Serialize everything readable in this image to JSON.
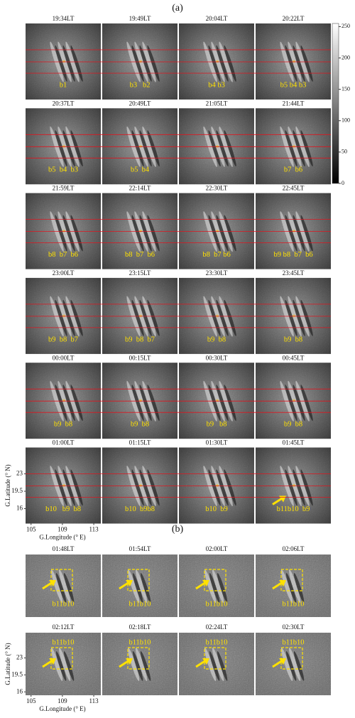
{
  "panel_a": {
    "label": "(a)",
    "panels": [
      {
        "time": "19:34LT",
        "bands": "b1"
      },
      {
        "time": "19:49LT",
        "bands": "b3   b2"
      },
      {
        "time": "20:04LT",
        "bands": "b4 b3"
      },
      {
        "time": "20:22LT",
        "bands": "b5 b4 b3"
      },
      {
        "time": "20:37LT",
        "bands": "b5  b4  b3"
      },
      {
        "time": "20:49LT",
        "bands": "b5  b4"
      },
      {
        "time": "21:05LT"
      },
      {
        "time": "21:44LT",
        "bands": "b7  b6"
      },
      {
        "time": "21:59LT",
        "bands": "b8  b7  b6"
      },
      {
        "time": "22:14LT",
        "bands": "b8  b7  b6"
      },
      {
        "time": "22:30LT",
        "bands": "b8  b7 b6"
      },
      {
        "time": "22:45LT",
        "bands": "b9 b8  b7  b6"
      },
      {
        "time": "23:00LT",
        "bands": "b9  b8  b7"
      },
      {
        "time": "23:15LT",
        "bands": "b9  b8  b7"
      },
      {
        "time": "23:30LT",
        "bands": "b9  b8"
      },
      {
        "time": "23:45LT",
        "bands": "b9  b8"
      },
      {
        "time": "00:00LT",
        "bands": "b9  b8"
      },
      {
        "time": "00:15LT",
        "bands": "b9  b8"
      },
      {
        "time": "00:30LT",
        "bands": "b9   b8"
      },
      {
        "time": "00:45LT",
        "bands": "b9  b8"
      },
      {
        "time": "01:00LT",
        "bands": "b10   b9  b8"
      },
      {
        "time": "01:15LT",
        "bands": "b10  b9b8"
      },
      {
        "time": "01:30LT",
        "bands": "b10  b9"
      },
      {
        "time": "01:45LT",
        "bands": "b11b10  b9"
      }
    ],
    "colorbar": {
      "lim": [
        0,
        255
      ],
      "ticks": [
        0,
        50,
        100,
        150,
        200,
        250
      ]
    },
    "y_axis": {
      "label": "G.Latitude (° N)",
      "lim": [
        13,
        28.3
      ],
      "ticks": [
        23,
        19.5,
        16
      ]
    },
    "x_axis": {
      "label": "G.Longitude (° E)",
      "lim": [
        104.3,
        113.9
      ],
      "ticks": [
        105,
        109,
        113
      ]
    }
  },
  "panel_b": {
    "label": "(b)",
    "panels": [
      {
        "time": "01:48LT",
        "bands": "b11b10"
      },
      {
        "time": "01:54LT",
        "bands": "b11b10"
      },
      {
        "time": "02:00LT",
        "bands": "b11b10"
      },
      {
        "time": "02:06LT",
        "bands": "b11b10"
      },
      {
        "time": "02:12LT",
        "bands": "b11b10"
      },
      {
        "time": "02:18LT",
        "bands": "b11b10"
      },
      {
        "time": "02:24LT",
        "bands": "b11b10"
      },
      {
        "time": "02:30LT",
        "bands": "b11b10"
      }
    ],
    "y_axis": {
      "label": "G.Latitude (° N)",
      "lim": [
        15.3,
        28.2
      ],
      "ticks": [
        23,
        19.5,
        16
      ]
    },
    "x_axis": {
      "label": "G.Longitude (° E)",
      "lim": [
        104.3,
        113.9
      ],
      "ticks": [
        105,
        109,
        113
      ]
    }
  }
}
